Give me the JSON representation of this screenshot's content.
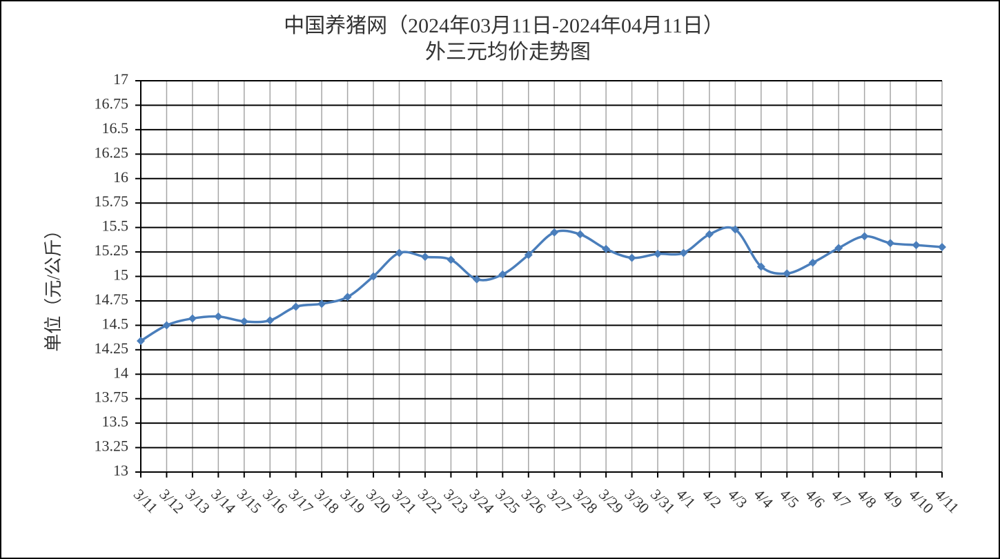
{
  "chart_data": {
    "type": "line",
    "title": "中国养猪网（2024年03月11日-2024年04月11日）",
    "subtitle": "外三元均价走势图",
    "y_label": "单位（元/公斤）",
    "categories": [
      "3/11",
      "3/12",
      "3/13",
      "3/14",
      "3/15",
      "3/16",
      "3/17",
      "3/18",
      "3/19",
      "3/20",
      "3/21",
      "3/22",
      "3/23",
      "3/24",
      "3/25",
      "3/26",
      "3/27",
      "3/28",
      "3/29",
      "3/30",
      "3/31",
      "4/1",
      "4/2",
      "4/3",
      "4/4",
      "4/5",
      "4/6",
      "4/7",
      "4/8",
      "4/9",
      "4/10",
      "4/11"
    ],
    "series": [
      {
        "color": "#4a7ebb",
        "values": [
          14.34,
          14.5,
          14.57,
          14.59,
          14.54,
          14.55,
          14.69,
          14.72,
          14.79,
          15.0,
          15.24,
          15.2,
          15.17,
          14.97,
          15.02,
          15.22,
          15.45,
          15.43,
          15.28,
          15.19,
          15.23,
          15.24,
          15.43,
          15.48,
          15.1,
          15.03,
          15.14,
          15.29,
          15.41,
          15.34,
          15.32,
          15.3
        ]
      }
    ],
    "ylim": [
      13,
      17
    ],
    "yticks": [
      13,
      13.25,
      13.5,
      13.75,
      14,
      14.25,
      14.5,
      14.75,
      15,
      15.25,
      15.5,
      15.75,
      16,
      16.25,
      16.5,
      16.75,
      17
    ],
    "grid": true
  }
}
